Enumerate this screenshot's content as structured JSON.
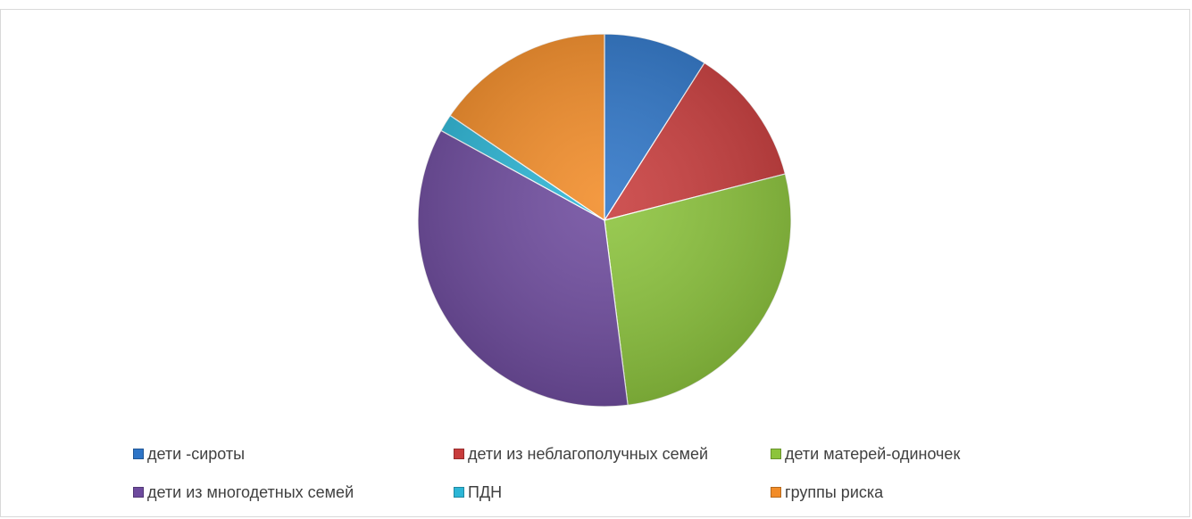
{
  "chart_data": {
    "type": "pie",
    "title": "",
    "categories": [
      "дети -сироты",
      "дети из неблагополучных семей",
      "дети матерей-одиночек",
      "дети из многодетных семей",
      "ПДН",
      "группы риска"
    ],
    "values": [
      9,
      12,
      27,
      35,
      1.5,
      15.5
    ],
    "colors": [
      "#2e75c7",
      "#c83c3c",
      "#8cc43c",
      "#6e4b9e",
      "#2cb6d6",
      "#f28c28"
    ],
    "start_angle_deg": 0,
    "direction": "clockwise",
    "legend": {
      "position": "bottom",
      "columns": 3
    }
  }
}
